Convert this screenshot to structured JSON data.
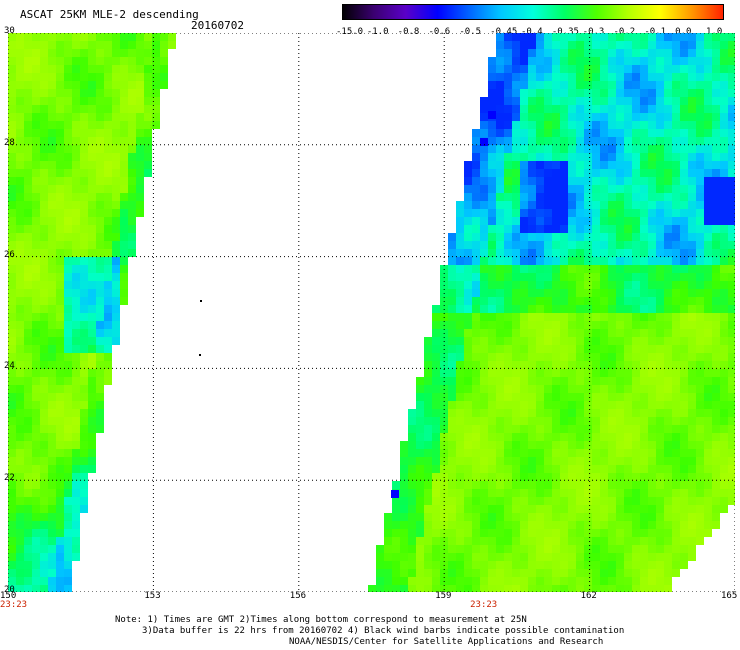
{
  "header": {
    "title": "ASCAT 25KM MLE-2 descending",
    "date": "20160702"
  },
  "colorbar": {
    "labels": [
      "-15.0",
      "-1.0",
      "-0.8",
      "-0.6",
      "-0.5",
      "-0.45",
      "-0.4",
      "-0.35",
      "-0.3",
      "-0.2",
      "-0.1",
      "0.0",
      "1.0"
    ],
    "colors": [
      "#000000",
      "#3a0070",
      "#5a00c8",
      "#0000ff",
      "#0064ff",
      "#00c8ff",
      "#00ffdc",
      "#00ff64",
      "#50ff00",
      "#b4ff00",
      "#ffff00",
      "#ff9600",
      "#ff1e00"
    ]
  },
  "map": {
    "x_ticks": [
      "150",
      "153",
      "156",
      "159",
      "162",
      "165"
    ],
    "y_ticks": [
      "30",
      "28",
      "26",
      "24",
      "22",
      "20"
    ],
    "x_range": [
      150,
      165
    ],
    "y_range": [
      20,
      30
    ],
    "times": [
      {
        "label": "23:23",
        "lon": 150
      },
      {
        "label": "23:23",
        "lon": 159.7
      }
    ]
  },
  "notes": {
    "line1": "Note: 1) Times are GMT 2)Times along bottom correspond to measurement at 25N",
    "line2": "3)Data buffer is 22 hrs from 20160702 4) Black wind barbs indicate possible contamination",
    "line3": "NOAA/NESDIS/Center for Satellite Applications and Research"
  }
}
